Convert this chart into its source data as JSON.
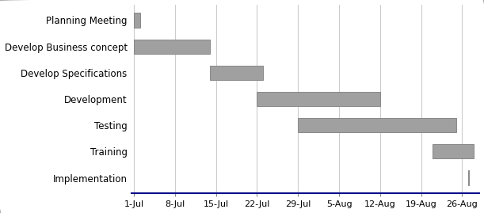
{
  "tasks": [
    "Planning Meeting",
    "Develop Business concept",
    "Develop Specifications",
    "Development",
    "Testing",
    "Training",
    "Implementation"
  ],
  "start_days": [
    0,
    0,
    13,
    21,
    28,
    51,
    57
  ],
  "durations": [
    1,
    13,
    9,
    21,
    27,
    7,
    0.15
  ],
  "bar_color": "#a0a0a0",
  "bar_edge_color": "#888888",
  "bar_height": 0.55,
  "x_tick_days": [
    0,
    7,
    14,
    21,
    28,
    35,
    42,
    49,
    56
  ],
  "x_tick_labels": [
    "1-Jul",
    "8-Jul",
    "15-Jul",
    "22-Jul",
    "29-Jul",
    "5-Aug",
    "12-Aug",
    "19-Aug",
    "26-Aug"
  ],
  "xlim_min": -0.5,
  "xlim_max": 59,
  "background_color": "#ffffff",
  "border_color": "#b0b0b0",
  "grid_color": "#cccccc",
  "axis_line_color": "#00008B",
  "font_size_labels": 8.5,
  "font_size_ticks": 8
}
